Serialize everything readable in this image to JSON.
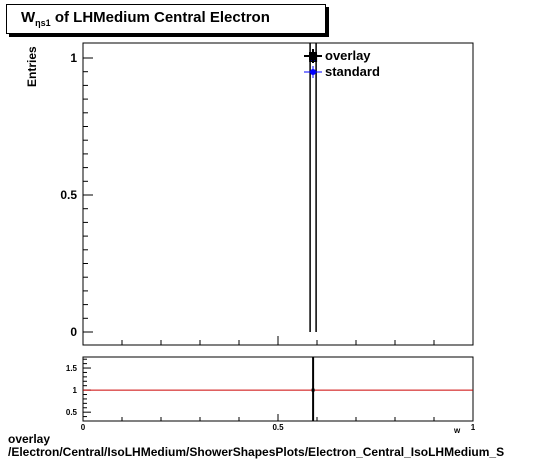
{
  "title": {
    "main": "W",
    "sub": "ηs1",
    "rest": " of LHMedium Central  Electron"
  },
  "chart_data": [
    {
      "type": "scatter",
      "name": "main",
      "ylabel": "Entries",
      "xlim": [
        0,
        1
      ],
      "ylim": [
        0,
        1.05
      ],
      "y_ticks": [
        "0",
        "0.5",
        "1"
      ],
      "series": [
        {
          "name": "overlay",
          "color": "#000000",
          "marker": "square",
          "points": [
            {
              "x": 0.59,
              "y": 1
            }
          ]
        },
        {
          "name": "standard",
          "color": "#0000ff",
          "marker": "circle",
          "points": [
            {
              "x": 0.59,
              "y": 1
            }
          ]
        }
      ],
      "legend_position": "top-right"
    },
    {
      "type": "line",
      "name": "ratio",
      "xlim": [
        0,
        1
      ],
      "ylim": [
        0.3,
        1.75
      ],
      "x_ticks": [
        "0",
        "0.5",
        "1"
      ],
      "y_ticks": [
        "0.5",
        "1",
        "1.5"
      ],
      "reference_line": {
        "y": 1,
        "color": "#cc0000"
      },
      "marker": {
        "x": 0.59,
        "y": 1
      },
      "xlabel": "w"
    }
  ],
  "footer": {
    "line1": "overlay",
    "line2": "/Electron/Central/IsoLHMedium/ShowerShapesPlots/Electron_Central_IsoLHMedium_S"
  }
}
